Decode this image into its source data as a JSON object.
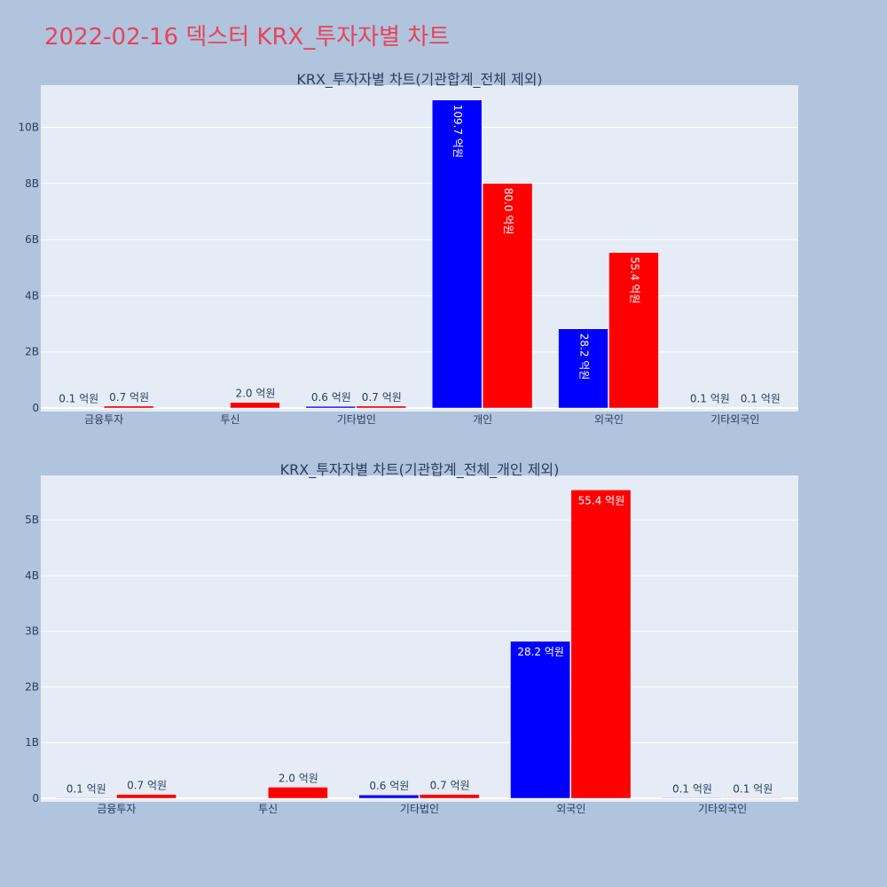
{
  "page": {
    "title": "2022-02-16 덱스터 KRX_투자자별 차트"
  },
  "colors": {
    "buy": "#0000ff",
    "sell": "#ff0000",
    "plot_bg": "#e5ecf6",
    "paper_bg": "#b0c4de",
    "title": "#e8445a",
    "text": "#2a3f5f"
  },
  "chart_data": [
    {
      "type": "bar",
      "title": "KRX_투자자별 차트(기관합계_전체 제외)",
      "categories": [
        "금융투자",
        "투신",
        "기타법인",
        "개인",
        "외국인",
        "기타외국인"
      ],
      "series": [
        {
          "color": "blue",
          "values": [
            10000000,
            0,
            60000000,
            10970000000,
            2820000000,
            10000000
          ],
          "labels": [
            "0.1 억원",
            "",
            "0.6 억원",
            "109.7 억원",
            "28.2 억원",
            "0.1 억원"
          ]
        },
        {
          "color": "red",
          "values": [
            70000000,
            200000000,
            70000000,
            8000000000,
            5540000000,
            10000000
          ],
          "labels": [
            "0.7 억원",
            "2.0 억원",
            "0.7 억원",
            "80.0 억원",
            "55.4 억원",
            "0.1 억원"
          ]
        }
      ],
      "ylim": [
        0,
        11500000000
      ],
      "yticks": [
        0,
        2000000000,
        4000000000,
        6000000000,
        8000000000,
        10000000000
      ],
      "ytick_labels": [
        "0",
        "2B",
        "4B",
        "6B",
        "8B",
        "10B"
      ],
      "inside_label_orientation": "vertical",
      "grid": true
    },
    {
      "type": "bar",
      "title": "KRX_투자자별 차트(기관합계_전체_개인 제외)",
      "categories": [
        "금융투자",
        "투신",
        "기타법인",
        "외국인",
        "기타외국인"
      ],
      "series": [
        {
          "color": "blue",
          "values": [
            10000000,
            0,
            60000000,
            2820000000,
            10000000
          ],
          "labels": [
            "0.1 억원",
            "",
            "0.6 억원",
            "28.2 억원",
            "0.1 억원"
          ]
        },
        {
          "color": "red",
          "values": [
            70000000,
            200000000,
            70000000,
            5540000000,
            10000000
          ],
          "labels": [
            "0.7 억원",
            "2.0 억원",
            "0.7 억원",
            "55.4 억원",
            "0.1 억원"
          ]
        }
      ],
      "ylim": [
        0,
        5800000000
      ],
      "yticks": [
        0,
        1000000000,
        2000000000,
        3000000000,
        4000000000,
        5000000000
      ],
      "ytick_labels": [
        "0",
        "1B",
        "2B",
        "3B",
        "4B",
        "5B"
      ],
      "inside_label_orientation": "horizontal",
      "grid": true
    }
  ]
}
